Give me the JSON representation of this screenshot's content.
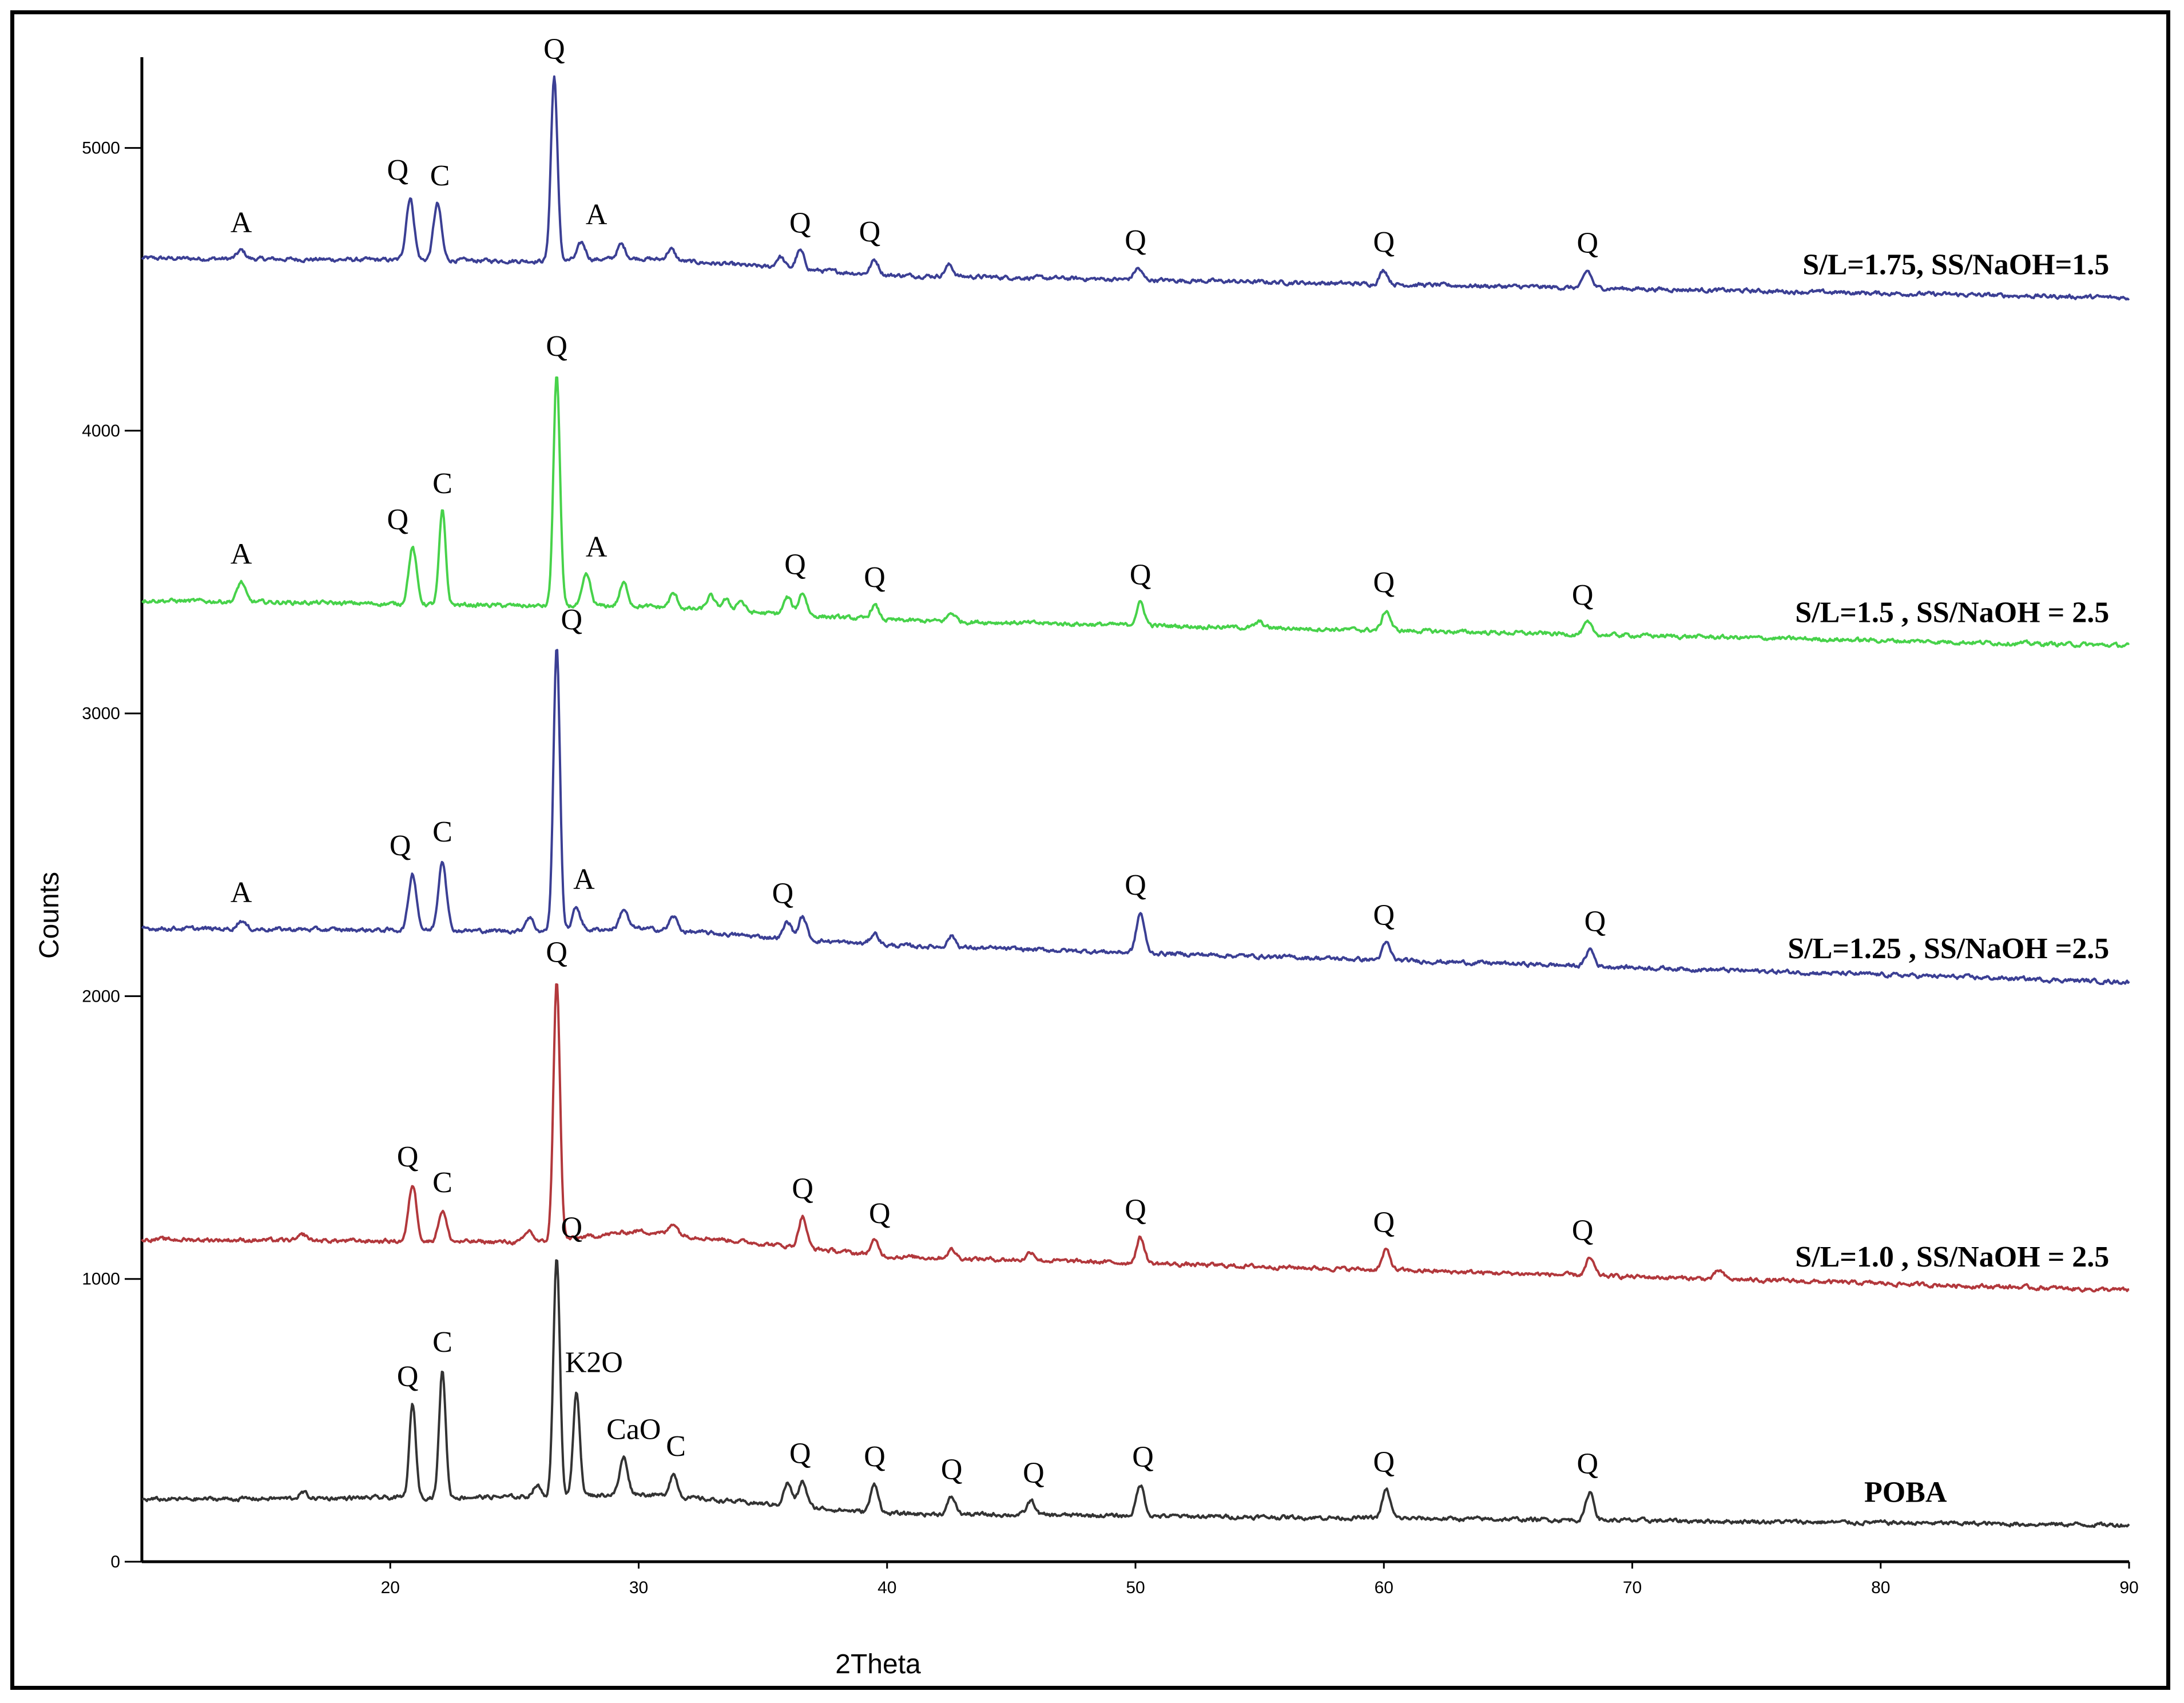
{
  "chart_data": {
    "type": "line",
    "title": "",
    "xlabel": "2Theta",
    "ylabel": "Counts",
    "xlim": [
      10,
      90
    ],
    "ylim": [
      0,
      5250
    ],
    "x_ticks": [
      "20",
      "30",
      "40",
      "50",
      "60",
      "70",
      "80",
      "90"
    ],
    "y_ticks": [
      "0",
      "1000",
      "2000",
      "3000",
      "4000",
      "5000"
    ],
    "series": [
      {
        "name": "S/L=1.75, SS/NaOH=1.5",
        "color": "#3b3f94",
        "baseline": [
          [
            10,
            4610
          ],
          [
            26,
            4600
          ],
          [
            30,
            4610
          ],
          [
            40,
            4550
          ],
          [
            90,
            4470
          ]
        ],
        "peaks": [
          [
            14,
            30
          ],
          [
            20.8,
            220
          ],
          [
            21.9,
            200
          ],
          [
            26.6,
            650
          ],
          [
            27.7,
            60
          ],
          [
            29.3,
            50
          ],
          [
            31.3,
            40
          ],
          [
            35.7,
            40
          ],
          [
            36.5,
            65
          ],
          [
            39.5,
            50
          ],
          [
            42.5,
            40
          ],
          [
            50.1,
            40
          ],
          [
            60,
            50
          ],
          [
            68.2,
            60
          ]
        ],
        "labels": [
          [
            "A",
            14
          ],
          [
            "Q",
            20.3
          ],
          [
            "C",
            22
          ],
          [
            "Q",
            26.6
          ],
          [
            "A",
            28.3
          ],
          [
            "Q",
            36.5
          ],
          [
            "Q",
            39.3
          ],
          [
            "Q",
            50
          ],
          [
            "Q",
            60
          ],
          [
            "Q",
            68.2
          ]
        ]
      },
      {
        "name": "S/L=1.5 , SS/NaOH = 2.5",
        "color": "#47d24a",
        "baseline": [
          [
            10,
            3400
          ],
          [
            26,
            3380
          ],
          [
            30,
            3380
          ],
          [
            40,
            3330
          ],
          [
            90,
            3240
          ]
        ],
        "peaks": [
          [
            14,
            70
          ],
          [
            20.9,
            200
          ],
          [
            22.1,
            330
          ],
          [
            26.7,
            820
          ],
          [
            27.9,
            110
          ],
          [
            29.4,
            80
          ],
          [
            31.4,
            50
          ],
          [
            32.9,
            50
          ],
          [
            33.5,
            40
          ],
          [
            34.1,
            40
          ],
          [
            36,
            60
          ],
          [
            36.6,
            80
          ],
          [
            39.5,
            50
          ],
          [
            42.6,
            30
          ],
          [
            50.2,
            80
          ],
          [
            55,
            20
          ],
          [
            60.1,
            70
          ],
          [
            68.2,
            40
          ]
        ],
        "labels": [
          [
            "A",
            14
          ],
          [
            "Q",
            20.3
          ],
          [
            "C",
            22.1
          ],
          [
            "Q",
            26.7
          ],
          [
            "A",
            28.3
          ],
          [
            "Q",
            36.3
          ],
          [
            "Q",
            39.5
          ],
          [
            "Q",
            50.2
          ],
          [
            "Q",
            60
          ],
          [
            "Q",
            68
          ]
        ]
      },
      {
        "name": "S/L=1.25 , SS/NaOH =2.5",
        "color": "#3b3f94",
        "baseline": [
          [
            10,
            2240
          ],
          [
            26,
            2230
          ],
          [
            30,
            2240
          ],
          [
            40,
            2180
          ],
          [
            90,
            2050
          ]
        ],
        "peaks": [
          [
            14,
            30
          ],
          [
            20.9,
            200
          ],
          [
            22.1,
            250
          ],
          [
            25.6,
            50
          ],
          [
            26.7,
            1000
          ],
          [
            27.5,
            80
          ],
          [
            29.4,
            70
          ],
          [
            31.4,
            50
          ],
          [
            36,
            60
          ],
          [
            36.6,
            80
          ],
          [
            39.5,
            40
          ],
          [
            42.6,
            40
          ],
          [
            50.2,
            140
          ],
          [
            60.1,
            60
          ],
          [
            68.3,
            60
          ]
        ],
        "labels": [
          [
            "A",
            14
          ],
          [
            "Q",
            20.4
          ],
          [
            "C",
            22.1
          ],
          [
            "Q",
            27.3
          ],
          [
            "A",
            27.8
          ],
          [
            "Q",
            35.8
          ],
          [
            "Q",
            50
          ],
          [
            "Q",
            60
          ],
          [
            "Q",
            68.5
          ]
        ]
      },
      {
        "name": "S/L=1.0 , SS/NaOH = 2.5",
        "color": "#b2383c",
        "baseline": [
          [
            10,
            1140
          ],
          [
            26,
            1130
          ],
          [
            30,
            1170
          ],
          [
            40,
            1080
          ],
          [
            90,
            960
          ]
        ],
        "peaks": [
          [
            16.5,
            20
          ],
          [
            20.9,
            200
          ],
          [
            22.1,
            110
          ],
          [
            25.6,
            40
          ],
          [
            26.7,
            920
          ],
          [
            31.4,
            40
          ],
          [
            36.6,
            110
          ],
          [
            39.5,
            50
          ],
          [
            42.6,
            30
          ],
          [
            45.8,
            30
          ],
          [
            50.2,
            90
          ],
          [
            60.1,
            70
          ],
          [
            68.3,
            60
          ],
          [
            73.5,
            30
          ]
        ],
        "labels": [
          [
            "Q",
            20.7
          ],
          [
            "C",
            22.1
          ],
          [
            "Q",
            26.7
          ],
          [
            "Q",
            36.6
          ],
          [
            "Q",
            39.7
          ],
          [
            "Q",
            50
          ],
          [
            "Q",
            60
          ],
          [
            "Q",
            68
          ]
        ]
      },
      {
        "name": "POBA",
        "color": "#333333",
        "baseline": [
          [
            10,
            220
          ],
          [
            26,
            230
          ],
          [
            30,
            240
          ],
          [
            40,
            170
          ],
          [
            90,
            130
          ]
        ],
        "peaks": [
          [
            16.5,
            20
          ],
          [
            20.9,
            330
          ],
          [
            22.1,
            450
          ],
          [
            25.9,
            40
          ],
          [
            26.7,
            850
          ],
          [
            27.5,
            370
          ],
          [
            29.4,
            130
          ],
          [
            31.4,
            80
          ],
          [
            36,
            80
          ],
          [
            36.6,
            90
          ],
          [
            39.5,
            100
          ],
          [
            42.6,
            60
          ],
          [
            45.8,
            50
          ],
          [
            50.2,
            110
          ],
          [
            60.1,
            100
          ],
          [
            68.3,
            100
          ]
        ],
        "labels": [
          [
            "Q",
            20.7
          ],
          [
            "C",
            22.1
          ],
          [
            "Q",
            27.3
          ],
          [
            "K2O",
            28.2
          ],
          [
            "CaO",
            29.8
          ],
          [
            "C",
            31.5
          ],
          [
            "Q",
            36.5
          ],
          [
            "Q",
            39.5
          ],
          [
            "Q",
            42.6
          ],
          [
            "Q",
            45.9
          ],
          [
            "Q",
            50.3
          ],
          [
            "Q",
            60
          ],
          [
            "Q",
            68.2
          ]
        ]
      }
    ]
  }
}
